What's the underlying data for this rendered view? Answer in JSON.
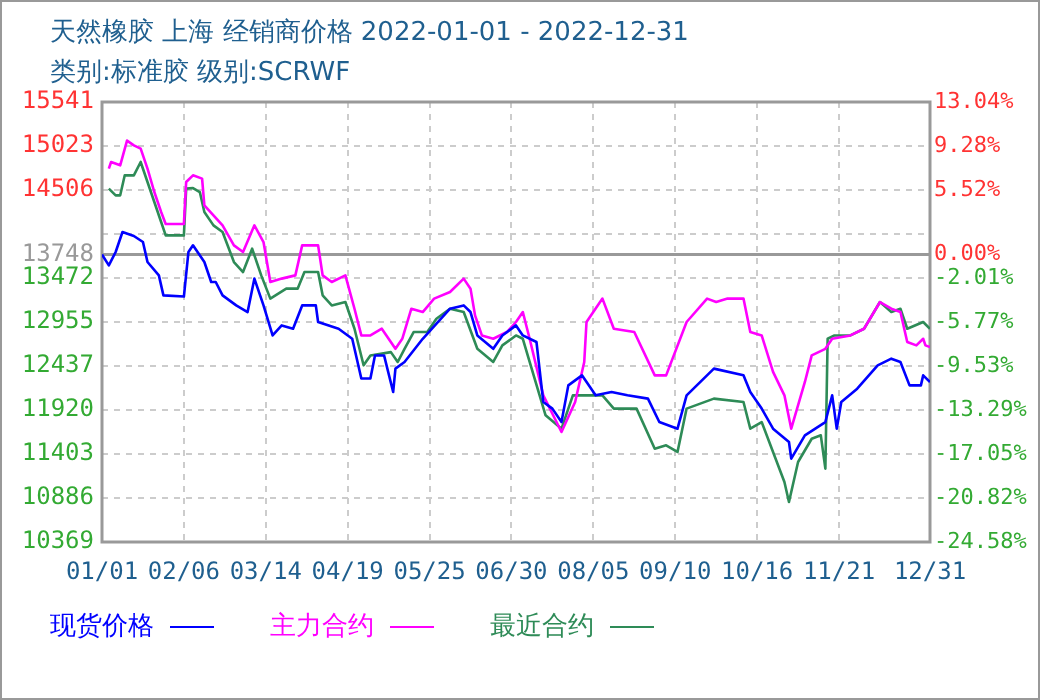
{
  "chart_data": {
    "type": "line",
    "title": "天然橡胶 上海 经销商价格 2022-01-01 - 2022-12-31",
    "subtitle": "类别:标准胶 级别:SCRWF",
    "xlim": [
      "2022-01-01",
      "2022-12-31"
    ],
    "xticks": [
      {
        "value": "2022-01-01",
        "label": "01/01"
      },
      {
        "value": "2022-02-06",
        "label": "02/06"
      },
      {
        "value": "2022-03-14",
        "label": "03/14"
      },
      {
        "value": "2022-04-19",
        "label": "04/19"
      },
      {
        "value": "2022-05-25",
        "label": "05/25"
      },
      {
        "value": "2022-06-30",
        "label": "06/30"
      },
      {
        "value": "2022-08-05",
        "label": "08/05"
      },
      {
        "value": "2022-09-10",
        "label": "09/10"
      },
      {
        "value": "2022-10-16",
        "label": "10/16"
      },
      {
        "value": "2022-11-21",
        "label": "11/21"
      },
      {
        "value": "2022-12-31",
        "label": "12/31"
      }
    ],
    "ylim": [
      10369,
      15541
    ],
    "yticks": [
      10369,
      10886,
      11403,
      11920,
      12437,
      12955,
      13472,
      {
        "value": 13989,
        "label": null
      },
      14506,
      15023,
      15541
    ],
    "y2lim": [
      -24.58,
      13.04
    ],
    "y2ticks": [
      {
        "value": -24.58,
        "label": "-24.58%"
      },
      {
        "value": -20.82,
        "label": "-20.82%"
      },
      {
        "value": -17.05,
        "label": "-17.05%"
      },
      {
        "value": -13.29,
        "label": "-13.29%"
      },
      {
        "value": -9.53,
        "label": "-9.53%"
      },
      {
        "value": -5.77,
        "label": "-5.77%"
      },
      {
        "value": -2.01,
        "label": "-2.01%"
      },
      {
        "value": 0,
        "label": "0.00%"
      },
      {
        "value": 5.52,
        "label": "5.52%"
      },
      {
        "value": 9.28,
        "label": "9.28%"
      },
      {
        "value": 13.04,
        "label": "13.04%"
      }
    ],
    "ref_lines": [
      {
        "axis": "y",
        "value": 13748,
        "label": "13748",
        "color": "#999999"
      }
    ],
    "grid": true,
    "legend": "bottom",
    "marker": "none",
    "line_style": "solid",
    "series": [
      {
        "name": "现货价格",
        "color": "#0000ff",
        "x": [
          "2022-01-01",
          "2022-01-04",
          "2022-01-07",
          "2022-01-10",
          "2022-01-15",
          "2022-01-19",
          "2022-01-21",
          "2022-01-26",
          "2022-01-28",
          "2022-02-06",
          "2022-02-08",
          "2022-02-10",
          "2022-02-15",
          "2022-02-18",
          "2022-02-20",
          "2022-02-23",
          "2022-03-01",
          "2022-03-06",
          "2022-03-09",
          "2022-03-13",
          "2022-03-17",
          "2022-03-21",
          "2022-03-26",
          "2022-03-30",
          "2022-04-05",
          "2022-04-06",
          "2022-04-15",
          "2022-04-21",
          "2022-04-25",
          "2022-04-29",
          "2022-05-01",
          "2022-05-05",
          "2022-05-09",
          "2022-05-10",
          "2022-05-14",
          "2022-05-22",
          "2022-06-03",
          "2022-06-09",
          "2022-06-12",
          "2022-06-15",
          "2022-06-22",
          "2022-06-26",
          "2022-07-02",
          "2022-07-05",
          "2022-07-11",
          "2022-07-14",
          "2022-07-18",
          "2022-07-22",
          "2022-07-25",
          "2022-07-31",
          "2022-08-06",
          "2022-08-13",
          "2022-08-20",
          "2022-08-29",
          "2022-09-03",
          "2022-09-11",
          "2022-09-15",
          "2022-09-27",
          "2022-10-10",
          "2022-10-13",
          "2022-10-18",
          "2022-10-23",
          "2022-10-30",
          "2022-10-31",
          "2022-11-06",
          "2022-11-15",
          "2022-11-18",
          "2022-11-20",
          "2022-11-22",
          "2022-11-29",
          "2022-12-08",
          "2022-12-14",
          "2022-12-18",
          "2022-12-22",
          "2022-12-27",
          "2022-12-28",
          "2022-12-31"
        ],
        "values": [
          13748,
          13620,
          13778,
          14013,
          13966,
          13895,
          13660,
          13503,
          13268,
          13254,
          13778,
          13857,
          13660,
          13425,
          13425,
          13268,
          13150,
          13072,
          13465,
          13150,
          12797,
          12915,
          12876,
          13150,
          13150,
          12955,
          12876,
          12758,
          12290,
          12290,
          12562,
          12562,
          12132,
          12407,
          12485,
          12758,
          13111,
          13150,
          13072,
          12797,
          12640,
          12797,
          12915,
          12797,
          12720,
          12015,
          11937,
          11779,
          12210,
          12328,
          12093,
          12132,
          12093,
          12054,
          11779,
          11701,
          12093,
          12407,
          12328,
          12132,
          11937,
          11701,
          11544,
          11349,
          11623,
          11779,
          12093,
          11701,
          12015,
          12171,
          12446,
          12524,
          12485,
          12210,
          12210,
          12328,
          12250
        ]
      },
      {
        "name": "主力合约",
        "color": "#ff00ff",
        "x": [
          "2022-01-04",
          "2022-01-05",
          "2022-01-09",
          "2022-01-12",
          "2022-01-15",
          "2022-01-18",
          "2022-01-21",
          "2022-01-24",
          "2022-01-27",
          "2022-01-29",
          "2022-02-06",
          "2022-02-07",
          "2022-02-10",
          "2022-02-14",
          "2022-02-15",
          "2022-02-19",
          "2022-02-23",
          "2022-02-28",
          "2022-03-04",
          "2022-03-09",
          "2022-03-13",
          "2022-03-16",
          "2022-03-21",
          "2022-03-27",
          "2022-03-30",
          "2022-04-06",
          "2022-04-08",
          "2022-04-12",
          "2022-04-18",
          "2022-04-22",
          "2022-04-25",
          "2022-04-29",
          "2022-05-04",
          "2022-05-10",
          "2022-05-13",
          "2022-05-17",
          "2022-05-22",
          "2022-05-27",
          "2022-06-03",
          "2022-06-09",
          "2022-06-12",
          "2022-06-14",
          "2022-06-17",
          "2022-06-22",
          "2022-06-28",
          "2022-07-02",
          "2022-07-05",
          "2022-07-08",
          "2022-07-14",
          "2022-07-22",
          "2022-07-28",
          "2022-08-01",
          "2022-08-02",
          "2022-08-09",
          "2022-08-14",
          "2022-08-23",
          "2022-09-01",
          "2022-09-06",
          "2022-09-15",
          "2022-09-24",
          "2022-09-28",
          "2022-10-03",
          "2022-10-10",
          "2022-10-13",
          "2022-10-18",
          "2022-10-23",
          "2022-10-28",
          "2022-10-31",
          "2022-11-06",
          "2022-11-09",
          "2022-11-15",
          "2022-11-18",
          "2022-11-26",
          "2022-12-02",
          "2022-12-09",
          "2022-12-14",
          "2022-12-18",
          "2022-12-21",
          "2022-12-25",
          "2022-12-28",
          "2022-12-29",
          "2022-12-31"
        ],
        "values": [
          14758,
          14836,
          14797,
          15087,
          15031,
          14993,
          14758,
          14483,
          14248,
          14107,
          14107,
          14601,
          14679,
          14640,
          14326,
          14208,
          14091,
          13856,
          13778,
          14091,
          13895,
          13425,
          13465,
          13503,
          13856,
          13856,
          13503,
          13425,
          13503,
          13111,
          12797,
          12797,
          12876,
          12640,
          12758,
          13111,
          13072,
          13230,
          13308,
          13465,
          13347,
          13033,
          12797,
          12758,
          12837,
          12955,
          13072,
          12758,
          12093,
          11662,
          12015,
          12485,
          12955,
          13230,
          12876,
          12837,
          12328,
          12328,
          12955,
          13230,
          13190,
          13230,
          13230,
          12837,
          12797,
          12368,
          12093,
          11701,
          12250,
          12562,
          12640,
          12758,
          12797,
          12876,
          13190,
          13111,
          13072,
          12720,
          12680,
          12758,
          12680,
          12660
        ]
      },
      {
        "name": "最近合约",
        "color": "#2e8b57",
        "x": [
          "2022-01-04",
          "2022-01-07",
          "2022-01-09",
          "2022-01-11",
          "2022-01-15",
          "2022-01-18",
          "2022-01-21",
          "2022-01-24",
          "2022-01-27",
          "2022-01-29",
          "2022-02-06",
          "2022-02-07",
          "2022-02-10",
          "2022-02-13",
          "2022-02-15",
          "2022-02-19",
          "2022-02-23",
          "2022-02-28",
          "2022-03-04",
          "2022-03-08",
          "2022-03-12",
          "2022-03-16",
          "2022-03-23",
          "2022-03-28",
          "2022-03-31",
          "2022-04-06",
          "2022-04-08",
          "2022-04-12",
          "2022-04-18",
          "2022-04-22",
          "2022-04-26",
          "2022-04-29",
          "2022-05-08",
          "2022-05-11",
          "2022-05-14",
          "2022-05-18",
          "2022-05-24",
          "2022-05-28",
          "2022-06-03",
          "2022-06-09",
          "2022-06-15",
          "2022-06-22",
          "2022-06-26",
          "2022-07-02",
          "2022-07-05",
          "2022-07-08",
          "2022-07-15",
          "2022-07-22",
          "2022-07-27",
          "2022-08-02",
          "2022-08-09",
          "2022-08-14",
          "2022-08-24",
          "2022-09-01",
          "2022-09-06",
          "2022-09-11",
          "2022-09-15",
          "2022-09-27",
          "2022-10-10",
          "2022-10-13",
          "2022-10-18",
          "2022-10-23",
          "2022-10-28",
          "2022-10-30",
          "2022-11-03",
          "2022-11-09",
          "2022-11-13",
          "2022-11-15",
          "2022-11-16",
          "2022-11-19",
          "2022-11-26",
          "2022-12-02",
          "2022-12-09",
          "2022-12-14",
          "2022-12-18",
          "2022-12-21",
          "2022-12-28",
          "2022-12-31"
        ],
        "values": [
          14523,
          14444,
          14444,
          14679,
          14679,
          14836,
          14601,
          14366,
          14130,
          13973,
          13973,
          14523,
          14530,
          14483,
          14248,
          14091,
          14013,
          13660,
          13542,
          13817,
          13503,
          13230,
          13347,
          13347,
          13542,
          13542,
          13268,
          13150,
          13190,
          12876,
          12446,
          12562,
          12601,
          12485,
          12640,
          12837,
          12837,
          12993,
          13111,
          13072,
          12640,
          12485,
          12680,
          12797,
          12758,
          12485,
          11858,
          11701,
          12093,
          12093,
          12093,
          11937,
          11937,
          11466,
          11505,
          11427,
          11937,
          12054,
          12015,
          11701,
          11779,
          11427,
          11074,
          10839,
          11309,
          11583,
          11623,
          11231,
          12758,
          12797,
          12797,
          12876,
          13190,
          13072,
          13111,
          12876,
          12955,
          12876
        ]
      }
    ]
  }
}
